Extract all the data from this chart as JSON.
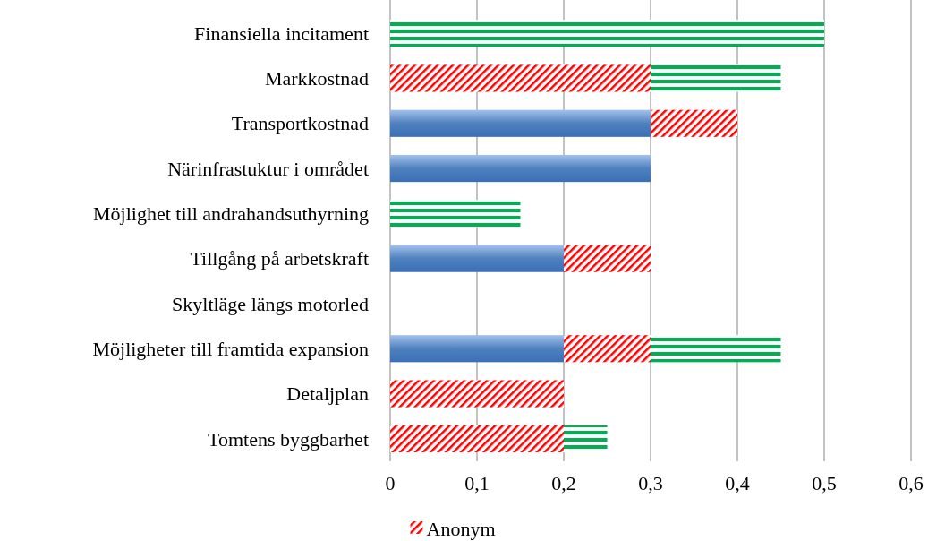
{
  "chart_data": {
    "type": "bar",
    "orientation": "horizontal",
    "stacked": true,
    "categories": [
      "Finansiella incitament",
      "Markkostnad",
      "Transportkostnad",
      "Närinfrastuktur i området",
      "Möjlighet till andrahandsuthyrning",
      "Tillgång på arbetskraft",
      "Skyltläge längs motorled",
      "Möjligheter till framtida expansion",
      "Detaljplan",
      "Tomtens byggbarhet"
    ],
    "series": [
      {
        "color": "#4f81bd",
        "values": [
          0,
          0,
          0.3,
          0.3,
          0,
          0.2,
          0,
          0.2,
          0,
          0
        ]
      },
      {
        "name": "Anonym",
        "color": "#ff0000",
        "values": [
          0,
          0.3,
          0.1,
          0,
          0,
          0.1,
          0,
          0.1,
          0.2,
          0.2
        ]
      },
      {
        "color": "#00b050",
        "values": [
          0.5,
          0.15,
          0,
          0,
          0.15,
          0,
          0,
          0.15,
          0,
          0.05
        ]
      }
    ],
    "xlim": [
      0,
      0.6
    ],
    "xticks": [
      0,
      {
        "value": 0.1,
        "label": "0,1"
      },
      {
        "value": 0.2,
        "label": "0,2"
      },
      {
        "value": 0.3,
        "label": "0,3"
      },
      {
        "value": 0.4,
        "label": "0,4"
      },
      {
        "value": 0.5,
        "label": "0,5"
      },
      {
        "value": 0.6,
        "label": "0,6"
      }
    ],
    "grid": "x",
    "legend": "bottom"
  }
}
